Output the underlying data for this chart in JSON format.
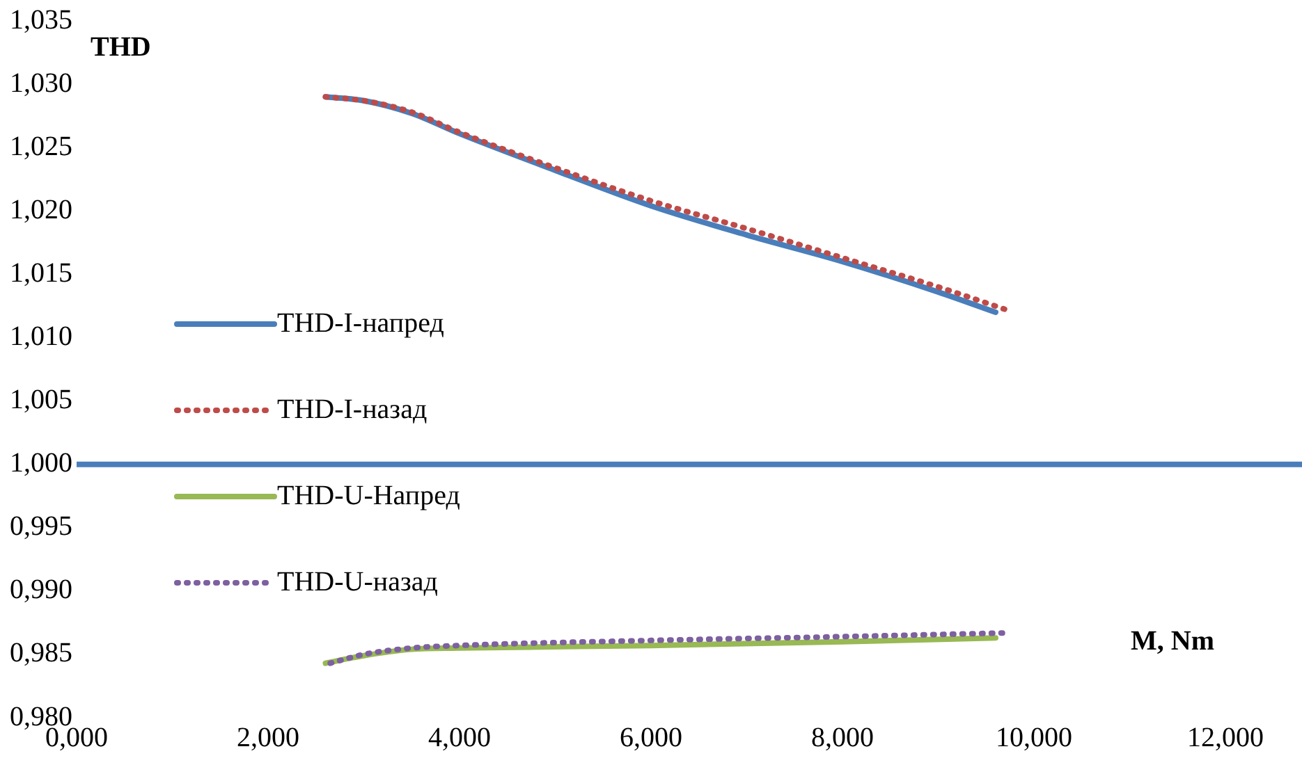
{
  "chart_data": {
    "type": "line",
    "xlabel": "M, Nm",
    "ylabel": "THD",
    "marker": "none",
    "grid": false,
    "legend": "left",
    "xlim": [
      0,
      12
    ],
    "xticks": [
      {
        "value": 0,
        "label": "0,000"
      },
      {
        "value": 2,
        "label": "2,000"
      },
      {
        "value": 4,
        "label": "4,000"
      },
      {
        "value": 6,
        "label": "6,000"
      },
      {
        "value": 8,
        "label": "8,000"
      },
      {
        "value": 10,
        "label": "10,000"
      },
      {
        "value": 12,
        "label": "12,000"
      }
    ],
    "ylim": [
      0.98,
      1.035
    ],
    "yticks": [
      {
        "value": 0.98,
        "label": "0,980"
      },
      {
        "value": 0.985,
        "label": "0,985"
      },
      {
        "value": 0.99,
        "label": "0,990"
      },
      {
        "value": 0.995,
        "label": "0,995"
      },
      {
        "value": 1.0,
        "label": "1,000"
      },
      {
        "value": 1.005,
        "label": "1,005"
      },
      {
        "value": 1.01,
        "label": "1,010"
      },
      {
        "value": 1.015,
        "label": "1,015"
      },
      {
        "value": 1.02,
        "label": "1,020"
      },
      {
        "value": 1.025,
        "label": "1,025"
      },
      {
        "value": 1.03,
        "label": "1,030"
      },
      {
        "value": 1.035,
        "label": "1,035"
      }
    ],
    "ref_lines": [
      {
        "axis": "y",
        "value": 1.0,
        "color": "#4a7ebb"
      }
    ],
    "series": [
      {
        "name": "THD-I-напред",
        "color": "#4a7ebb",
        "line_style": "solid",
        "x": [
          2.6,
          3.0,
          3.5,
          4.0,
          5.0,
          6.0,
          7.0,
          8.0,
          9.0,
          9.6
        ],
        "values": [
          1.029,
          1.0287,
          1.0277,
          1.0261,
          1.0232,
          1.0204,
          1.0181,
          1.016,
          1.0136,
          1.012
        ]
      },
      {
        "name": "THD-I-назад",
        "color": "#be4b48",
        "line_style": "dotted",
        "x": [
          2.6,
          3.0,
          3.5,
          4.0,
          5.0,
          6.0,
          7.0,
          8.0,
          9.0,
          9.75
        ],
        "values": [
          1.029,
          1.0287,
          1.0278,
          1.0262,
          1.0234,
          1.0208,
          1.0186,
          1.0163,
          1.014,
          1.0121
        ]
      },
      {
        "name": "THD-U-Напред",
        "color": "#98b954",
        "line_style": "solid",
        "x": [
          2.6,
          3.0,
          3.5,
          4.0,
          6.0,
          8.0,
          9.6
        ],
        "values": [
          0.9843,
          0.9849,
          0.9854,
          0.9855,
          0.9857,
          0.986,
          0.9863
        ]
      },
      {
        "name": "THD-U-назад",
        "color": "#7d60a0",
        "line_style": "dotted",
        "x": [
          2.65,
          3.0,
          3.5,
          4.0,
          6.0,
          8.0,
          9.75
        ],
        "values": [
          0.9843,
          0.985,
          0.9855,
          0.9857,
          0.9861,
          0.9864,
          0.9867
        ]
      }
    ]
  }
}
